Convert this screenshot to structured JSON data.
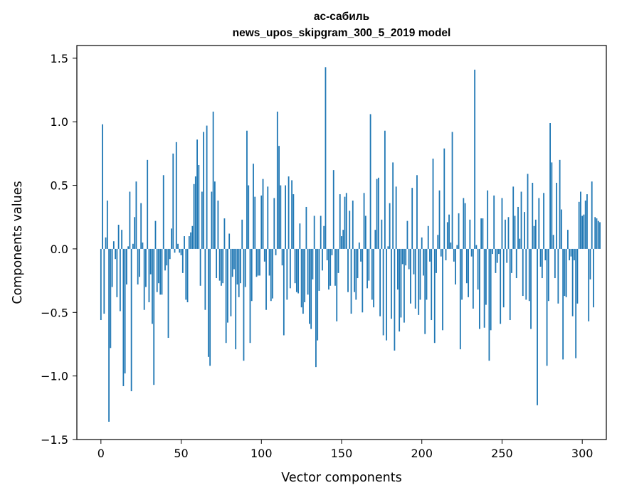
{
  "chart_data": {
    "type": "bar",
    "title": "ас-сабиль",
    "subtitle": "news_upos_skipgram_300_5_2019 model",
    "xlabel": "Vector components",
    "ylabel": "Components values",
    "xlim": [
      -15,
      315
    ],
    "ylim": [
      -1.5,
      1.6
    ],
    "xticks": [
      0,
      50,
      100,
      150,
      200,
      250,
      300
    ],
    "xtick_labels": [
      "0",
      "50",
      "100",
      "150",
      "200",
      "250",
      "300"
    ],
    "yticks": [
      -1.5,
      -1.0,
      -0.5,
      0.0,
      0.5,
      1.0,
      1.5
    ],
    "ytick_labels": [
      "−1.5",
      "−1.0",
      "−0.5",
      "0.0",
      "0.5",
      "1.0",
      "1.5"
    ],
    "grid": false,
    "bar_color": "#1f77b4",
    "values": [
      -0.56,
      0.98,
      -0.51,
      0.09,
      0.38,
      -1.36,
      -0.78,
      -0.3,
      0.06,
      -0.08,
      -0.38,
      0.19,
      -0.49,
      0.15,
      -1.08,
      -0.98,
      -0.28,
      0.02,
      0.45,
      -1.12,
      0.04,
      0.25,
      0.53,
      -0.28,
      -0.22,
      0.36,
      0.05,
      -0.48,
      -0.3,
      0.7,
      -0.42,
      -0.2,
      -0.59,
      -1.07,
      0.22,
      -0.34,
      -0.27,
      -0.36,
      -0.36,
      0.58,
      -0.17,
      -0.13,
      -0.7,
      -0.08,
      0.16,
      0.75,
      -0.03,
      0.84,
      0.04,
      -0.03,
      -0.05,
      -0.19,
      0.1,
      -0.4,
      -0.42,
      0.1,
      0.13,
      0.18,
      0.51,
      0.57,
      0.86,
      0.66,
      -0.29,
      0.45,
      0.92,
      -0.48,
      0.97,
      -0.85,
      -0.92,
      0.45,
      1.08,
      0.53,
      -0.23,
      0.38,
      -0.25,
      -0.29,
      -0.27,
      0.24,
      -0.74,
      -0.58,
      0.12,
      -0.53,
      -0.22,
      -0.16,
      -0.79,
      -0.28,
      -0.38,
      -0.27,
      0.23,
      -0.88,
      -0.3,
      0.93,
      0.5,
      -0.74,
      -0.41,
      0.67,
      0.41,
      -0.22,
      -0.21,
      -0.21,
      0.42,
      0.55,
      -0.1,
      -0.48,
      0.49,
      -0.21,
      -0.41,
      -0.39,
      0.4,
      -0.05,
      1.08,
      0.81,
      0.5,
      -0.13,
      -0.68,
      0.5,
      -0.4,
      0.57,
      -0.31,
      0.54,
      0.43,
      -0.27,
      -0.34,
      -0.35,
      0.2,
      -0.46,
      -0.51,
      -0.42,
      0.33,
      -0.36,
      -0.59,
      -0.63,
      -0.24,
      0.26,
      -0.93,
      -0.72,
      -0.33,
      0.26,
      -0.17,
      0.18,
      1.43,
      -0.09,
      -0.32,
      -0.29,
      -0.05,
      0.62,
      -0.29,
      -0.57,
      -0.19,
      0.43,
      0.1,
      0.15,
      0.41,
      0.44,
      -0.34,
      0.3,
      -0.51,
      0.38,
      -0.34,
      -0.4,
      -0.23,
      0.05,
      -0.1,
      -0.5,
      0.44,
      0.26,
      -0.31,
      -0.25,
      1.06,
      -0.4,
      -0.46,
      0.15,
      0.55,
      0.56,
      -0.53,
      0.23,
      -0.68,
      0.93,
      -0.72,
      0.02,
      0.36,
      -0.55,
      0.68,
      -0.8,
      0.49,
      -0.32,
      -0.65,
      -0.54,
      -0.12,
      -0.58,
      -0.13,
      0.22,
      -0.16,
      -0.43,
      0.48,
      -0.2,
      -0.47,
      0.58,
      -0.52,
      -0.4,
      0.09,
      -0.21,
      -0.67,
      -0.4,
      0.18,
      -0.1,
      -0.56,
      0.71,
      -0.74,
      -0.19,
      0.11,
      0.46,
      -0.06,
      -0.64,
      0.79,
      -0.09,
      0.21,
      0.27,
      0.05,
      0.92,
      -0.1,
      -0.28,
      0.03,
      0.28,
      -0.79,
      -0.4,
      0.4,
      0.36,
      -0.27,
      -0.38,
      0.23,
      -0.06,
      -0.47,
      1.41,
      0.03,
      -0.32,
      -0.63,
      0.24,
      0.24,
      -0.62,
      -0.44,
      0.46,
      -0.88,
      -0.64,
      -0.04,
      0.42,
      -0.19,
      -0.11,
      -0.04,
      -0.59,
      0.4,
      -0.46,
      0.23,
      -0.11,
      0.25,
      -0.56,
      -0.19,
      0.49,
      0.26,
      -0.23,
      0.33,
      0.08,
      0.45,
      -0.37,
      0.29,
      -0.4,
      0.59,
      -0.41,
      -0.63,
      0.52,
      0.18,
      0.23,
      -1.23,
      0.4,
      -0.14,
      -0.23,
      0.44,
      -0.09,
      -0.92,
      -0.41,
      0.99,
      0.68,
      0.11,
      -0.23,
      0.52,
      -0.43,
      0.7,
      0.31,
      -0.87,
      -0.37,
      -0.38,
      0.15,
      -0.09,
      -0.06,
      -0.53,
      -0.09,
      -0.86,
      -0.43,
      0.37,
      0.45,
      0.26,
      0.27,
      0.38,
      0.43,
      -0.57,
      -0.24,
      0.53,
      -0.46,
      0.25,
      0.24,
      0.22,
      0.21
    ]
  }
}
